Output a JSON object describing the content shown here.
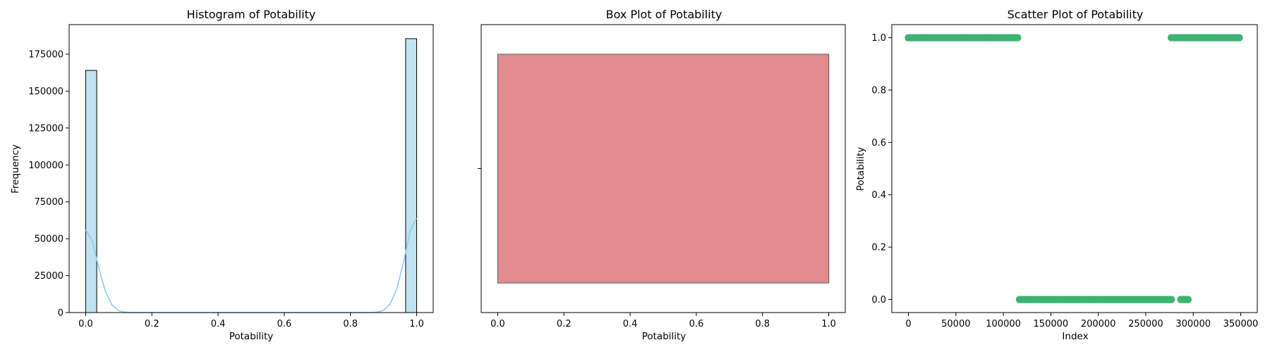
{
  "chart_data": [
    {
      "type": "bar",
      "title": "Histogram of Potability",
      "xlabel": "Potability",
      "ylabel": "Frequency",
      "xlim": [
        -0.05,
        1.05
      ],
      "ylim": [
        0,
        195000
      ],
      "xticks": [
        0.0,
        0.2,
        0.4,
        0.6,
        0.8,
        1.0
      ],
      "xtick_labels": [
        "0.0",
        "0.2",
        "0.4",
        "0.6",
        "0.8",
        "1.0"
      ],
      "yticks": [
        0,
        25000,
        50000,
        75000,
        100000,
        125000,
        150000,
        175000
      ],
      "ytick_labels": [
        "0",
        "25000",
        "50000",
        "75000",
        "100000",
        "125000",
        "150000",
        "175000"
      ],
      "bins": 30,
      "bars": [
        {
          "x0": 0.0,
          "x1": 0.0333,
          "value": 164000
        },
        {
          "x0": 0.9667,
          "x1": 1.0,
          "value": 185500
        }
      ],
      "kde": {
        "x": [
          0.0,
          0.02,
          0.04,
          0.06,
          0.08,
          0.1,
          0.12,
          0.14,
          0.16,
          0.84,
          0.86,
          0.88,
          0.9,
          0.92,
          0.94,
          0.96,
          0.98,
          1.0
        ],
        "values": [
          56000,
          48500,
          30000,
          14000,
          5000,
          1300,
          250,
          0,
          0,
          0,
          0,
          300,
          1500,
          5800,
          16000,
          34000,
          55000,
          64000
        ]
      },
      "bar_color": "#bfe3f0",
      "kde_color": "#87ceeb"
    },
    {
      "type": "box",
      "title": "Box Plot of Potability",
      "xlabel": "Potability",
      "xlim": [
        -0.05,
        1.05
      ],
      "xticks": [
        0.0,
        0.2,
        0.4,
        0.6,
        0.8,
        1.0
      ],
      "xtick_labels": [
        "0.0",
        "0.2",
        "0.4",
        "0.6",
        "0.8",
        "1.0"
      ],
      "box": {
        "min": 0.0,
        "q1": 0.0,
        "median": 1.0,
        "q3": 1.0,
        "max": 1.0
      },
      "box_color": "#e18b8e"
    },
    {
      "type": "scatter",
      "title": "Scatter Plot of Potability",
      "xlabel": "Index",
      "ylabel": "Potability",
      "xlim": [
        -17500,
        367500
      ],
      "ylim": [
        -0.05,
        1.05
      ],
      "xticks": [
        0,
        50000,
        100000,
        150000,
        200000,
        250000,
        300000,
        350000
      ],
      "xtick_labels": [
        "0",
        "50000",
        "100000",
        "150000",
        "200000",
        "250000",
        "300000",
        "350000"
      ],
      "yticks": [
        0.0,
        0.2,
        0.4,
        0.6,
        0.8,
        1.0
      ],
      "ytick_labels": [
        "0.0",
        "0.2",
        "0.4",
        "0.6",
        "0.8",
        "1.0"
      ],
      "segments": [
        {
          "y": 1.0,
          "x_start": 0,
          "x_end": 117000
        },
        {
          "y": 0.0,
          "x_start": 117000,
          "x_end": 277000
        },
        {
          "y": 1.0,
          "x_start": 277000,
          "x_end": 295000
        },
        {
          "y": 0.0,
          "x_start": 287000,
          "x_end": 296000
        },
        {
          "y": 1.0,
          "x_start": 296000,
          "x_end": 350000
        }
      ],
      "point_color": "#3cb371"
    }
  ]
}
